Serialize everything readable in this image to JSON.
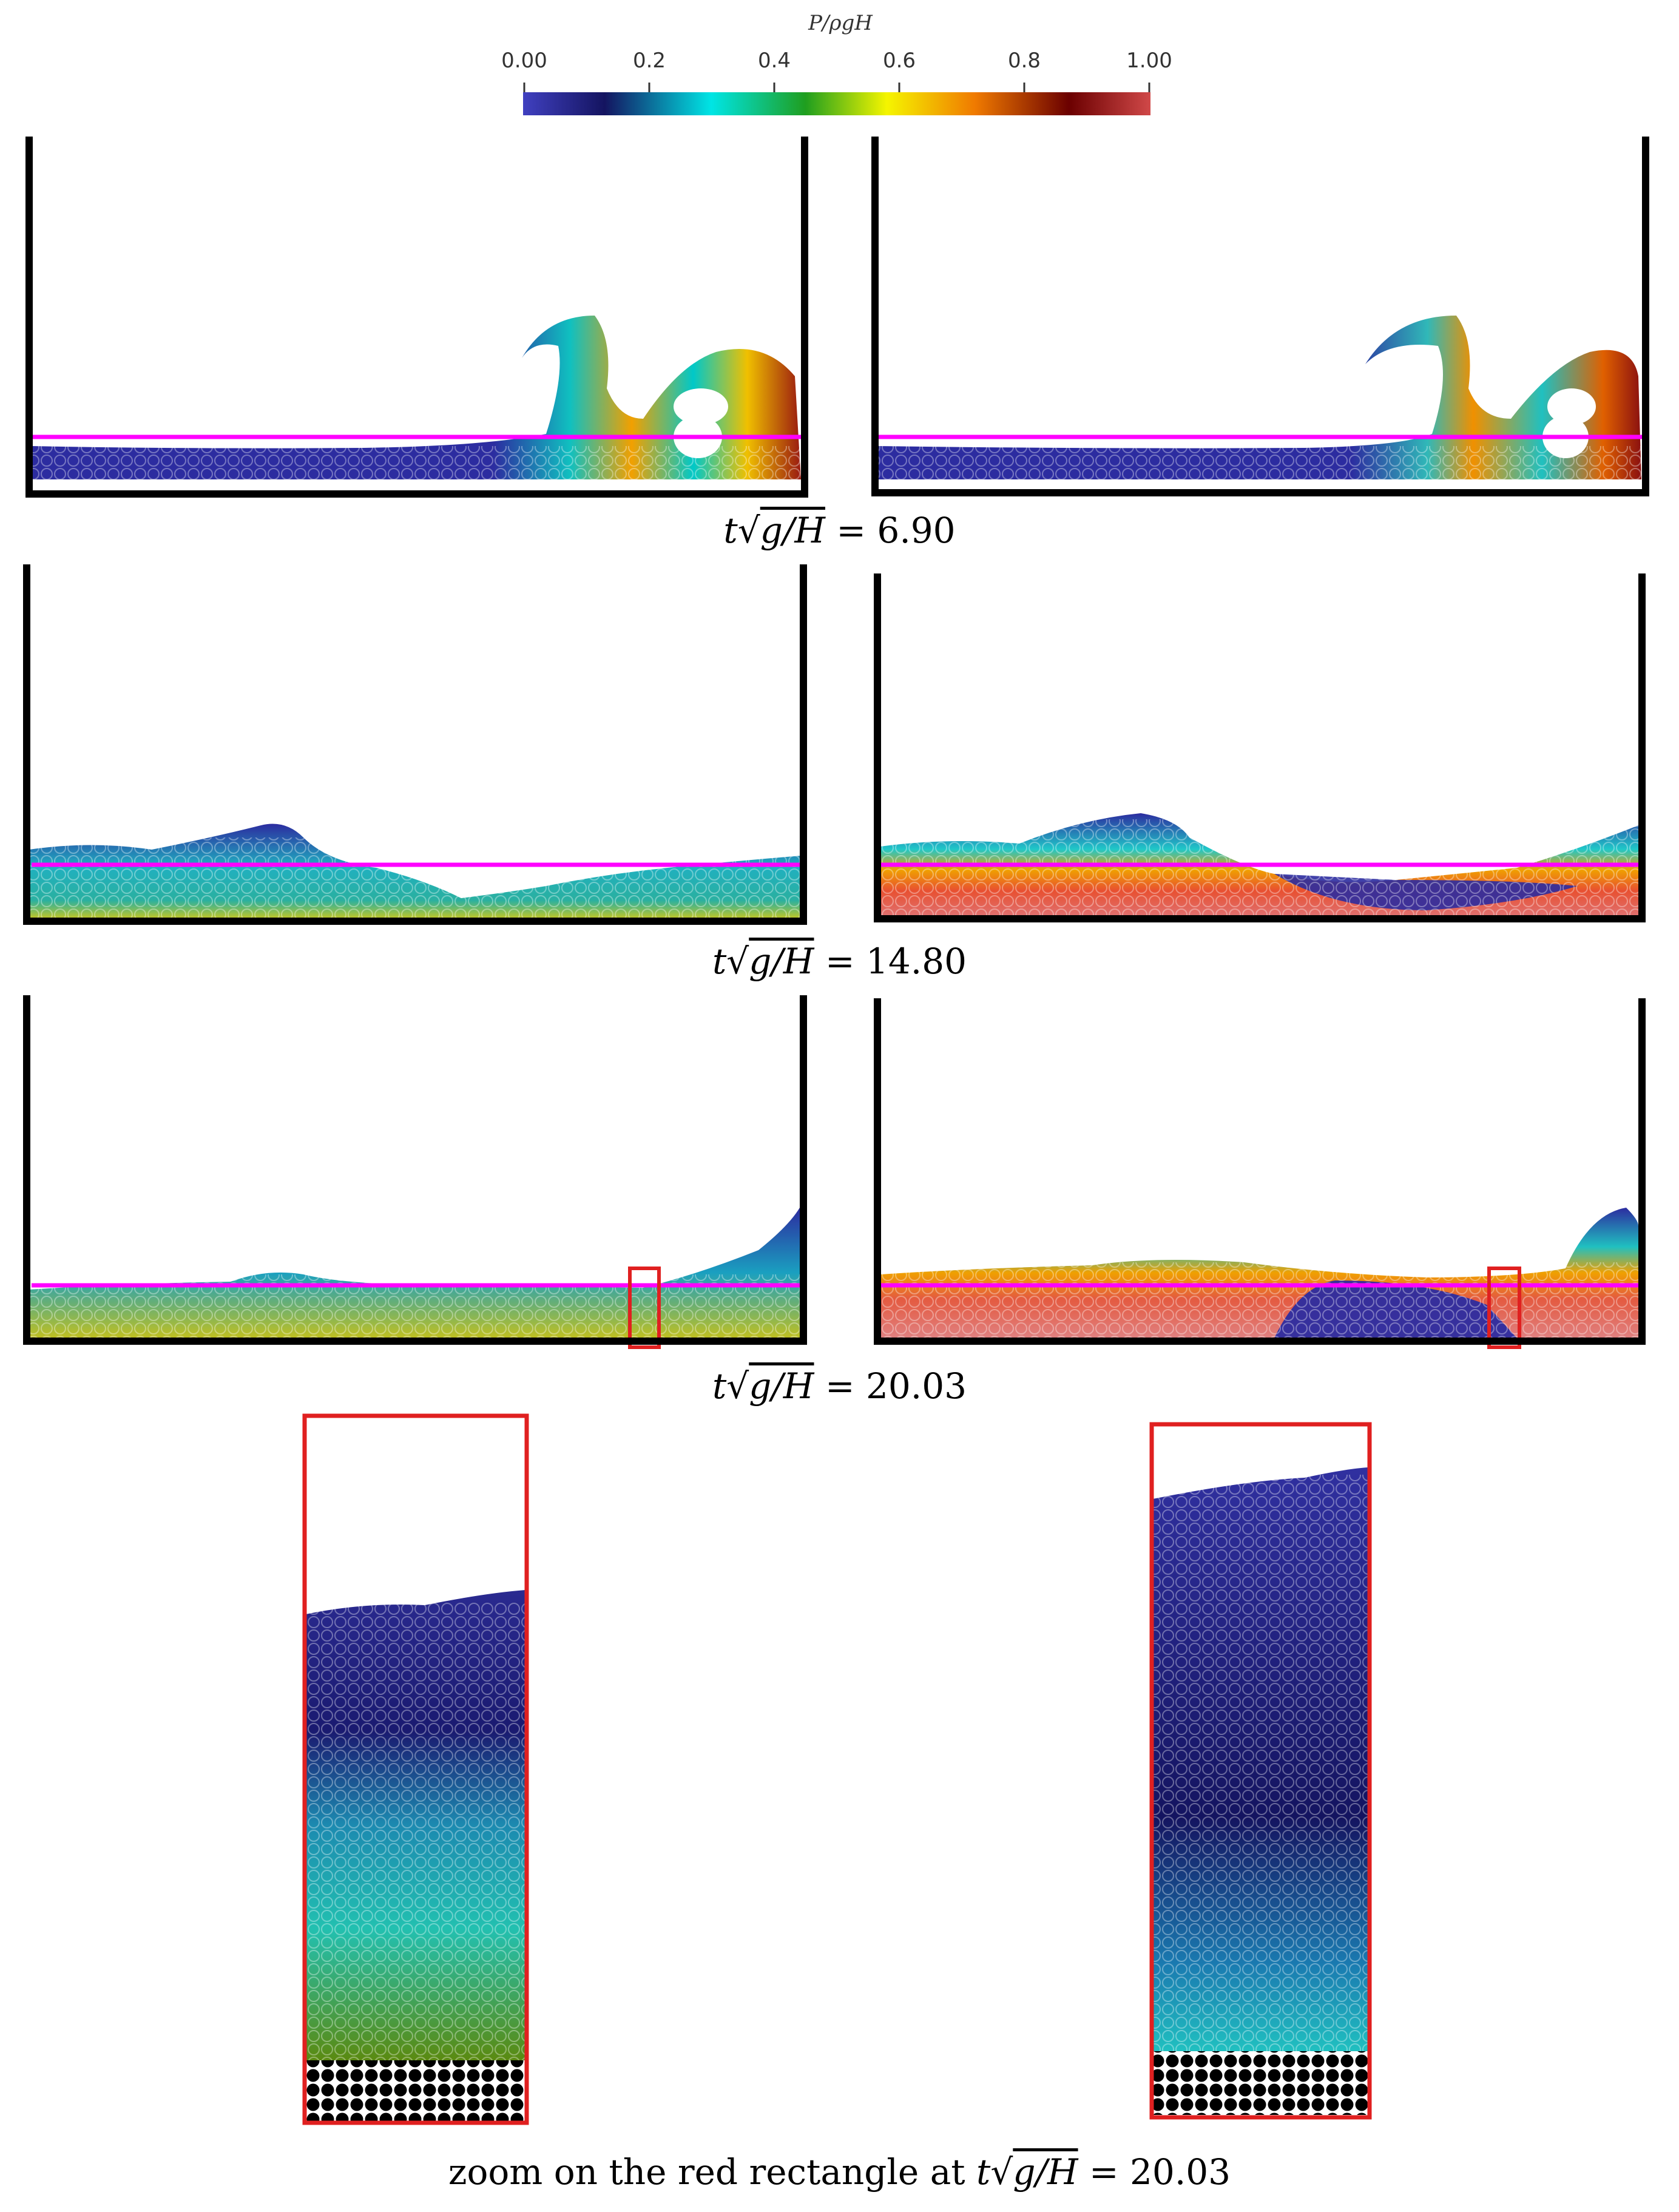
{
  "colorbar": {
    "title": "P/ρgH",
    "ticks": [
      "0.00",
      "0.2",
      "0.4",
      "0.6",
      "0.8",
      "1.00"
    ],
    "colors": [
      "#3b3bb0",
      "#1a1a6e",
      "#00e0e0",
      "#1f9e1f",
      "#f5f500",
      "#f08a00",
      "#6b0000",
      "#c84040"
    ]
  },
  "captions": {
    "row1": {
      "prefix": "t",
      "expr": "g/H",
      "value": "= 6.90"
    },
    "row2": {
      "prefix": "t",
      "expr": "g/H",
      "value": "= 14.80"
    },
    "row3": {
      "prefix": "t",
      "expr": "g/H",
      "value": "= 20.03"
    },
    "zoom": {
      "lead": "zoom on the red rectangle at ",
      "prefix": "t",
      "expr": "g/H",
      "value": "= 20.03"
    }
  },
  "colors": {
    "tank": "#000000",
    "waterline": "#ff00ff",
    "zoom_box": "#e02020",
    "particle_low": "#2a2a8a",
    "particle_mid": "#1fa8b0",
    "particle_high": "#4a8a1a"
  }
}
